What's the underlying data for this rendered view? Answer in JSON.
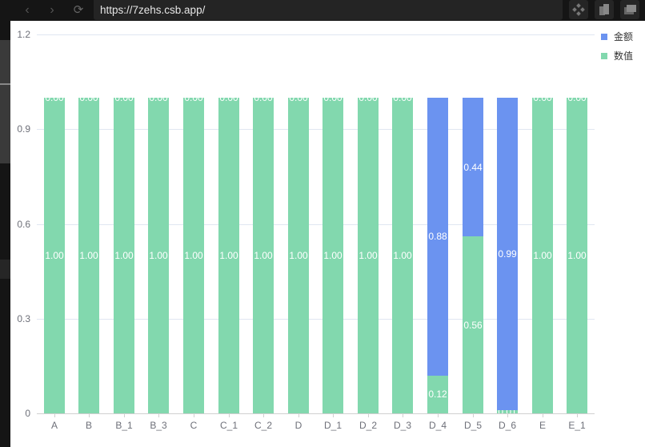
{
  "browser": {
    "url": "https://7zehs.csb.app/",
    "nav": {
      "back_icon": "‹",
      "forward_icon": "›",
      "reload_icon": "⟳"
    },
    "tools": [
      "extensions-icon",
      "split-view-icon",
      "windows-icon"
    ]
  },
  "colors": {
    "amount": "#6b93f0",
    "value": "#82d8ae",
    "grid": "#e0e6f1",
    "axis_text": "#6e7079"
  },
  "legend": {
    "items": [
      {
        "label": "金额",
        "color": "#6b93f0"
      },
      {
        "label": "数值",
        "color": "#82d8ae"
      }
    ]
  },
  "chart_data": {
    "type": "bar",
    "stacked": true,
    "title": "",
    "xlabel": "",
    "ylabel": "",
    "ylim": [
      0,
      1.2
    ],
    "yticks": [
      "0",
      "0.3",
      "0.6",
      "0.9",
      "1.2"
    ],
    "grid": true,
    "legend_position": "top-right",
    "categories": [
      "A",
      "B",
      "B_1",
      "B_3",
      "C",
      "C_1",
      "C_2",
      "D",
      "D_1",
      "D_2",
      "D_3",
      "D_4",
      "D_5",
      "D_6",
      "E",
      "E_1"
    ],
    "series": [
      {
        "name": "数值",
        "color": "#82d8ae",
        "values": [
          1.0,
          1.0,
          1.0,
          1.0,
          1.0,
          1.0,
          1.0,
          1.0,
          1.0,
          1.0,
          1.0,
          0.12,
          0.56,
          0.01,
          1.0,
          1.0
        ]
      },
      {
        "name": "金额",
        "color": "#6b93f0",
        "values": [
          0.0,
          0.0,
          0.0,
          0.0,
          0.0,
          0.0,
          0.0,
          0.0,
          0.0,
          0.0,
          0.0,
          0.88,
          0.44,
          0.99,
          0.0,
          0.0
        ]
      }
    ],
    "label_format": "0.00"
  }
}
